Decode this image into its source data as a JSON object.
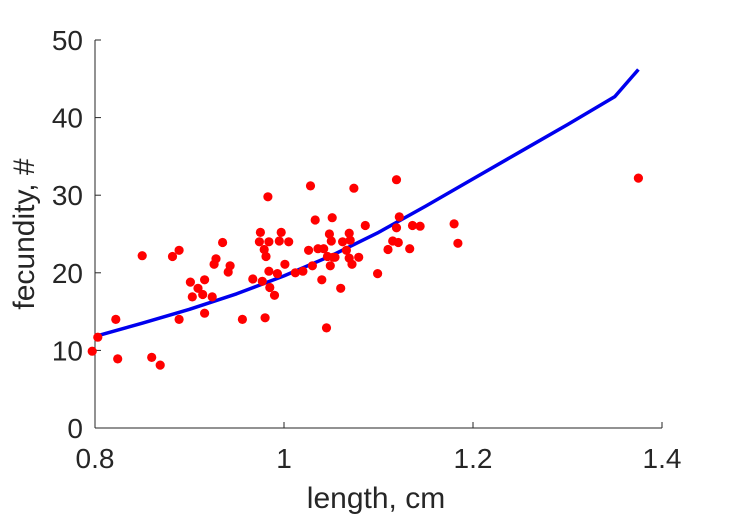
{
  "chart_data": {
    "type": "scatter",
    "xlabel": "length, cm",
    "ylabel": "fecundity, #",
    "xlim": [
      0.8,
      1.4
    ],
    "ylim": [
      0,
      50
    ],
    "xticks": [
      0.8,
      1,
      1.2,
      1.4
    ],
    "yticks": [
      0,
      10,
      20,
      30,
      40,
      50
    ],
    "xtick_labels": [
      "0.8",
      "1",
      "1.2",
      "1.4"
    ],
    "ytick_labels": [
      "0",
      "10",
      "20",
      "30",
      "40",
      "50"
    ],
    "grid": false,
    "colors": {
      "points": "#ff0000",
      "curve": "#0000ee",
      "axes": "#262626"
    },
    "series": [
      {
        "kind": "scatter",
        "points": [
          [
            0.797,
            9.9
          ],
          [
            0.803,
            11.7
          ],
          [
            0.822,
            14.0
          ],
          [
            0.824,
            8.9
          ],
          [
            0.85,
            22.2
          ],
          [
            0.86,
            9.1
          ],
          [
            0.869,
            8.1
          ],
          [
            0.882,
            22.1
          ],
          [
            0.889,
            22.9
          ],
          [
            0.889,
            14.0
          ],
          [
            0.901,
            18.8
          ],
          [
            0.903,
            16.9
          ],
          [
            0.909,
            18.0
          ],
          [
            0.914,
            17.2
          ],
          [
            0.916,
            19.1
          ],
          [
            0.916,
            14.8
          ],
          [
            0.924,
            16.9
          ],
          [
            0.926,
            21.1
          ],
          [
            0.928,
            21.8
          ],
          [
            0.935,
            23.9
          ],
          [
            0.941,
            20.1
          ],
          [
            0.943,
            20.9
          ],
          [
            0.956,
            14.0
          ],
          [
            0.967,
            19.2
          ],
          [
            0.974,
            24.0
          ],
          [
            0.975,
            25.2
          ],
          [
            0.977,
            18.9
          ],
          [
            0.979,
            23.0
          ],
          [
            0.98,
            14.2
          ],
          [
            0.981,
            22.1
          ],
          [
            0.983,
            29.8
          ],
          [
            0.984,
            24.0
          ],
          [
            0.984,
            20.2
          ],
          [
            0.985,
            18.1
          ],
          [
            0.99,
            17.1
          ],
          [
            0.993,
            19.9
          ],
          [
            0.995,
            24.1
          ],
          [
            0.997,
            25.2
          ],
          [
            1.001,
            21.1
          ],
          [
            1.005,
            24.0
          ],
          [
            1.012,
            20.0
          ],
          [
            1.02,
            20.2
          ],
          [
            1.026,
            22.9
          ],
          [
            1.028,
            31.2
          ],
          [
            1.03,
            20.9
          ],
          [
            1.033,
            26.8
          ],
          [
            1.036,
            23.1
          ],
          [
            1.04,
            19.1
          ],
          [
            1.042,
            23.1
          ],
          [
            1.045,
            12.9
          ],
          [
            1.046,
            22.1
          ],
          [
            1.048,
            25.0
          ],
          [
            1.049,
            20.9
          ],
          [
            1.05,
            24.1
          ],
          [
            1.051,
            27.1
          ],
          [
            1.052,
            22.0
          ],
          [
            1.054,
            22.0
          ],
          [
            1.06,
            18.0
          ],
          [
            1.062,
            24.0
          ],
          [
            1.066,
            22.9
          ],
          [
            1.069,
            21.9
          ],
          [
            1.069,
            25.1
          ],
          [
            1.07,
            24.2
          ],
          [
            1.072,
            21.1
          ],
          [
            1.074,
            30.9
          ],
          [
            1.079,
            22.0
          ],
          [
            1.086,
            26.1
          ],
          [
            1.099,
            19.9
          ],
          [
            1.11,
            23.0
          ],
          [
            1.115,
            24.1
          ],
          [
            1.119,
            25.8
          ],
          [
            1.119,
            32.0
          ],
          [
            1.121,
            23.9
          ],
          [
            1.122,
            27.2
          ],
          [
            1.133,
            23.1
          ],
          [
            1.136,
            26.1
          ],
          [
            1.144,
            26.0
          ],
          [
            1.18,
            26.3
          ],
          [
            1.184,
            23.8
          ],
          [
            1.375,
            32.2
          ]
        ]
      },
      {
        "kind": "line",
        "x": [
          0.8,
          0.85,
          0.9,
          0.95,
          1.0,
          1.05,
          1.1,
          1.15,
          1.2,
          1.25,
          1.3,
          1.35,
          1.375
        ],
        "y": [
          11.8,
          13.5,
          15.3,
          17.3,
          19.6,
          22.2,
          25.2,
          28.6,
          32.1,
          35.6,
          39.1,
          42.7,
          46.2
        ]
      }
    ]
  }
}
